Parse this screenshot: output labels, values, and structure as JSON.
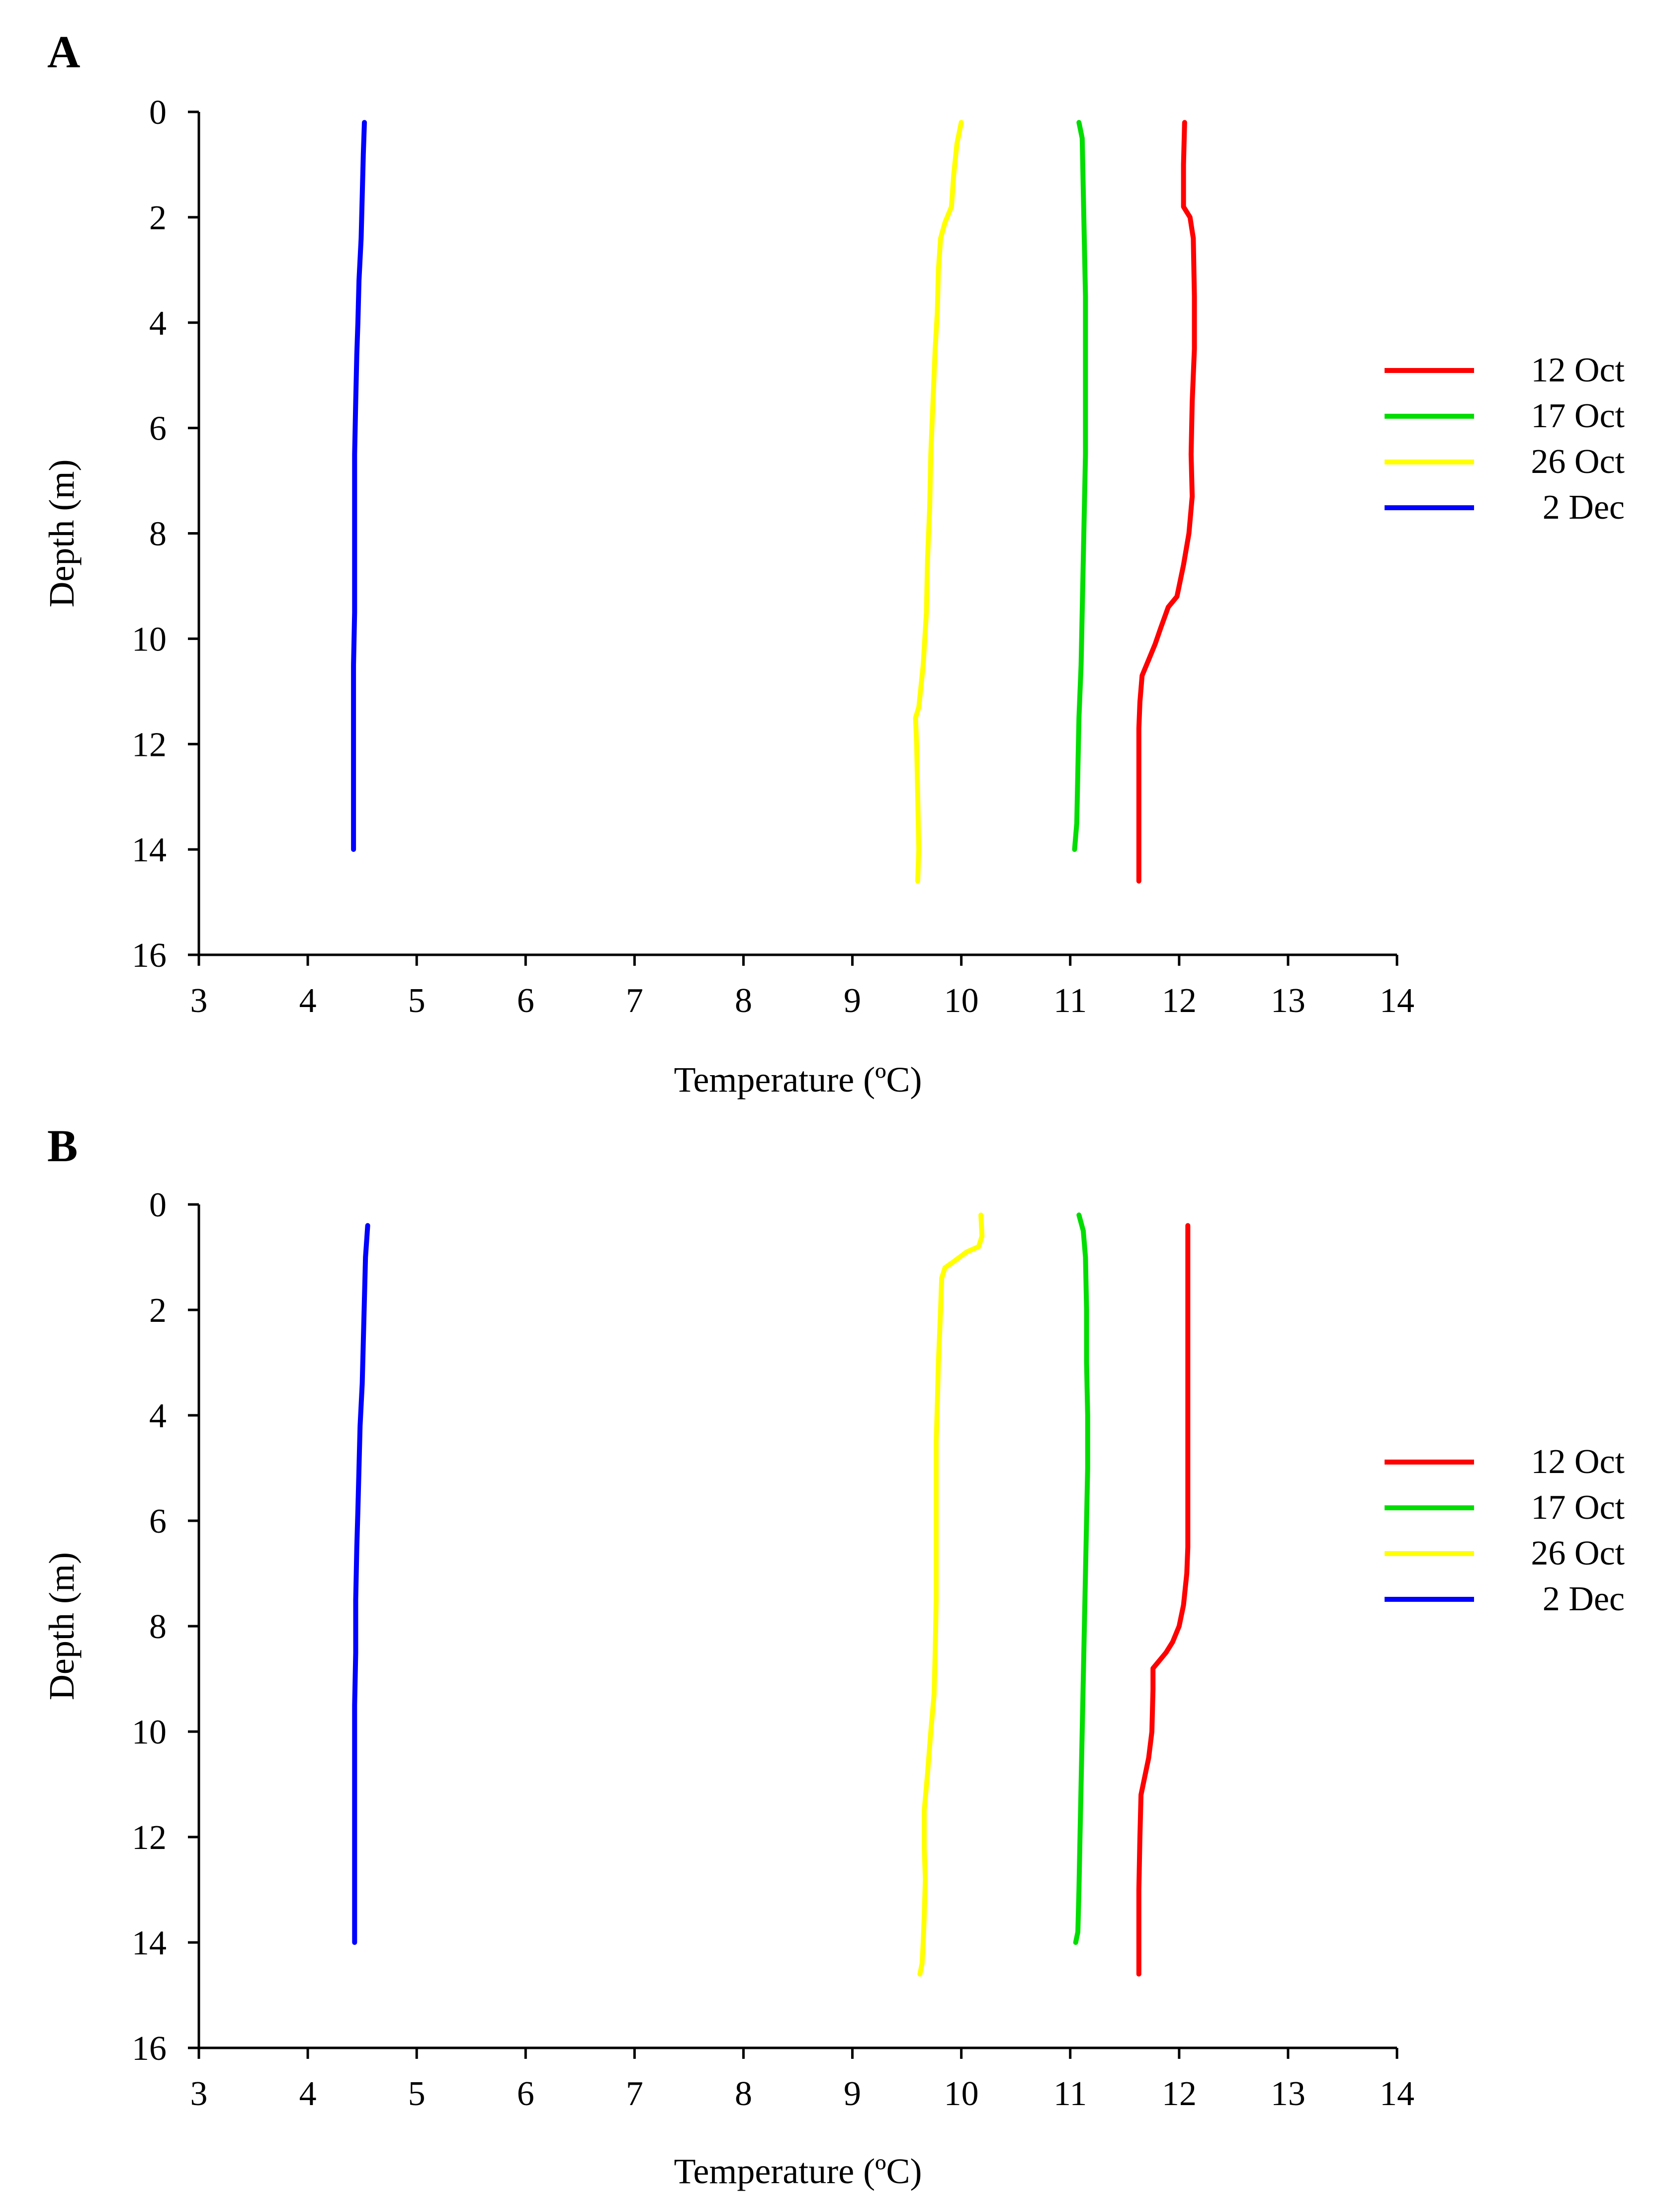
{
  "chart_data": [
    {
      "type": "line",
      "panel_label": "A",
      "xlabel": "Temperature (ºC)",
      "ylabel": "Depth (m)",
      "xlim": [
        3,
        14
      ],
      "ylim": [
        0,
        16
      ],
      "y_inverted": true,
      "x_ticks": [
        "3",
        "4",
        "5",
        "6",
        "7",
        "8",
        "9",
        "10",
        "11",
        "12",
        "13",
        "14"
      ],
      "y_ticks": [
        "0",
        "2",
        "4",
        "6",
        "8",
        "10",
        "12",
        "14",
        "16"
      ],
      "legend_position": "right",
      "series": [
        {
          "name": "12 Oct",
          "color": "#ff0000",
          "points": [
            [
              12.05,
              0.2
            ],
            [
              12.04,
              1.0
            ],
            [
              12.04,
              1.8
            ],
            [
              12.1,
              2.0
            ],
            [
              12.13,
              2.4
            ],
            [
              12.14,
              3.5
            ],
            [
              12.14,
              4.5
            ],
            [
              12.12,
              5.5
            ],
            [
              12.11,
              6.5
            ],
            [
              12.12,
              7.3
            ],
            [
              12.09,
              8.0
            ],
            [
              12.04,
              8.6
            ],
            [
              11.98,
              9.2
            ],
            [
              11.9,
              9.4
            ],
            [
              11.83,
              9.8
            ],
            [
              11.78,
              10.1
            ],
            [
              11.72,
              10.4
            ],
            [
              11.66,
              10.7
            ],
            [
              11.64,
              11.2
            ],
            [
              11.63,
              11.7
            ],
            [
              11.63,
              12.5
            ],
            [
              11.63,
              13.5
            ],
            [
              11.63,
              14.6
            ]
          ]
        },
        {
          "name": "17 Oct",
          "color": "#00dd00",
          "points": [
            [
              11.08,
              0.2
            ],
            [
              11.11,
              0.5
            ],
            [
              11.12,
              1.5
            ],
            [
              11.13,
              2.5
            ],
            [
              11.14,
              3.5
            ],
            [
              11.14,
              4.5
            ],
            [
              11.14,
              5.5
            ],
            [
              11.14,
              6.5
            ],
            [
              11.13,
              7.5
            ],
            [
              11.12,
              8.5
            ],
            [
              11.11,
              9.5
            ],
            [
              11.1,
              10.5
            ],
            [
              11.08,
              11.5
            ],
            [
              11.07,
              12.5
            ],
            [
              11.06,
              13.5
            ],
            [
              11.04,
              14.0
            ]
          ]
        },
        {
          "name": "26 Oct",
          "color": "#ffff00",
          "points": [
            [
              10.0,
              0.2
            ],
            [
              9.96,
              0.6
            ],
            [
              9.93,
              1.2
            ],
            [
              9.91,
              1.8
            ],
            [
              9.85,
              2.1
            ],
            [
              9.81,
              2.4
            ],
            [
              9.79,
              3.0
            ],
            [
              9.78,
              3.8
            ],
            [
              9.76,
              4.5
            ],
            [
              9.74,
              5.5
            ],
            [
              9.72,
              6.5
            ],
            [
              9.71,
              7.5
            ],
            [
              9.69,
              8.5
            ],
            [
              9.68,
              9.5
            ],
            [
              9.65,
              10.5
            ],
            [
              9.61,
              11.3
            ],
            [
              9.58,
              11.5
            ],
            [
              9.59,
              12.0
            ],
            [
              9.6,
              13.0
            ],
            [
              9.61,
              14.0
            ],
            [
              9.6,
              14.6
            ]
          ]
        },
        {
          "name": "2 Dec",
          "color": "#0000ff",
          "points": [
            [
              4.52,
              0.2
            ],
            [
              4.51,
              0.8
            ],
            [
              4.5,
              1.6
            ],
            [
              4.49,
              2.4
            ],
            [
              4.47,
              3.2
            ],
            [
              4.46,
              4.0
            ],
            [
              4.45,
              4.6
            ],
            [
              4.44,
              5.5
            ],
            [
              4.43,
              6.5
            ],
            [
              4.43,
              7.5
            ],
            [
              4.43,
              8.5
            ],
            [
              4.43,
              9.5
            ],
            [
              4.42,
              10.5
            ],
            [
              4.42,
              11.5
            ],
            [
              4.42,
              12.5
            ],
            [
              4.42,
              13.5
            ],
            [
              4.42,
              14.0
            ]
          ]
        }
      ]
    },
    {
      "type": "line",
      "panel_label": "B",
      "xlabel": "Temperature (ºC)",
      "ylabel": "Depth (m)",
      "xlim": [
        3,
        14
      ],
      "ylim": [
        0,
        16
      ],
      "y_inverted": true,
      "x_ticks": [
        "3",
        "4",
        "5",
        "6",
        "7",
        "8",
        "9",
        "10",
        "11",
        "12",
        "13",
        "14"
      ],
      "y_ticks": [
        "0",
        "2",
        "4",
        "6",
        "8",
        "10",
        "12",
        "14",
        "16"
      ],
      "legend_position": "right",
      "series": [
        {
          "name": "12 Oct",
          "color": "#ff0000",
          "points": [
            [
              12.08,
              0.4
            ],
            [
              12.08,
              1.5
            ],
            [
              12.08,
              2.5
            ],
            [
              12.08,
              3.5
            ],
            [
              12.08,
              4.5
            ],
            [
              12.08,
              5.5
            ],
            [
              12.08,
              6.5
            ],
            [
              12.07,
              7.0
            ],
            [
              12.04,
              7.6
            ],
            [
              12.0,
              8.0
            ],
            [
              11.94,
              8.3
            ],
            [
              11.88,
              8.5
            ],
            [
              11.8,
              8.7
            ],
            [
              11.76,
              8.8
            ],
            [
              11.76,
              9.2
            ],
            [
              11.75,
              10.0
            ],
            [
              11.72,
              10.5
            ],
            [
              11.68,
              10.9
            ],
            [
              11.65,
              11.2
            ],
            [
              11.64,
              12.0
            ],
            [
              11.63,
              13.0
            ],
            [
              11.63,
              14.0
            ],
            [
              11.63,
              14.6
            ]
          ]
        },
        {
          "name": "17 Oct",
          "color": "#00dd00",
          "points": [
            [
              11.08,
              0.2
            ],
            [
              11.12,
              0.5
            ],
            [
              11.14,
              1.0
            ],
            [
              11.15,
              2.0
            ],
            [
              11.15,
              3.0
            ],
            [
              11.16,
              4.0
            ],
            [
              11.16,
              5.0
            ],
            [
              11.15,
              6.0
            ],
            [
              11.14,
              7.0
            ],
            [
              11.13,
              8.0
            ],
            [
              11.12,
              9.0
            ],
            [
              11.11,
              10.0
            ],
            [
              11.1,
              11.0
            ],
            [
              11.09,
              12.0
            ],
            [
              11.08,
              13.0
            ],
            [
              11.07,
              13.8
            ],
            [
              11.05,
              14.0
            ]
          ]
        },
        {
          "name": "26 Oct",
          "color": "#ffff00",
          "points": [
            [
              10.18,
              0.2
            ],
            [
              10.19,
              0.6
            ],
            [
              10.16,
              0.8
            ],
            [
              10.05,
              0.9
            ],
            [
              9.92,
              1.1
            ],
            [
              9.85,
              1.2
            ],
            [
              9.82,
              1.4
            ],
            [
              9.81,
              2.0
            ],
            [
              9.79,
              3.0
            ],
            [
              9.78,
              3.8
            ],
            [
              9.77,
              4.5
            ],
            [
              9.77,
              5.5
            ],
            [
              9.77,
              6.5
            ],
            [
              9.77,
              7.5
            ],
            [
              9.76,
              8.5
            ],
            [
              9.75,
              9.3
            ],
            [
              9.72,
              10.0
            ],
            [
              9.69,
              10.8
            ],
            [
              9.66,
              11.5
            ],
            [
              9.66,
              12.2
            ],
            [
              9.67,
              12.8
            ],
            [
              9.66,
              13.5
            ],
            [
              9.65,
              14.0
            ],
            [
              9.64,
              14.4
            ],
            [
              9.62,
              14.6
            ]
          ]
        },
        {
          "name": "2 Dec",
          "color": "#0000ff",
          "points": [
            [
              4.55,
              0.4
            ],
            [
              4.53,
              1.0
            ],
            [
              4.52,
              1.8
            ],
            [
              4.51,
              2.6
            ],
            [
              4.5,
              3.4
            ],
            [
              4.48,
              4.2
            ],
            [
              4.47,
              5.0
            ],
            [
              4.46,
              5.8
            ],
            [
              4.45,
              6.5
            ],
            [
              4.44,
              7.5
            ],
            [
              4.44,
              8.5
            ],
            [
              4.43,
              9.5
            ],
            [
              4.43,
              10.5
            ],
            [
              4.43,
              11.5
            ],
            [
              4.43,
              12.5
            ],
            [
              4.43,
              13.5
            ],
            [
              4.43,
              14.0
            ]
          ]
        }
      ]
    }
  ]
}
